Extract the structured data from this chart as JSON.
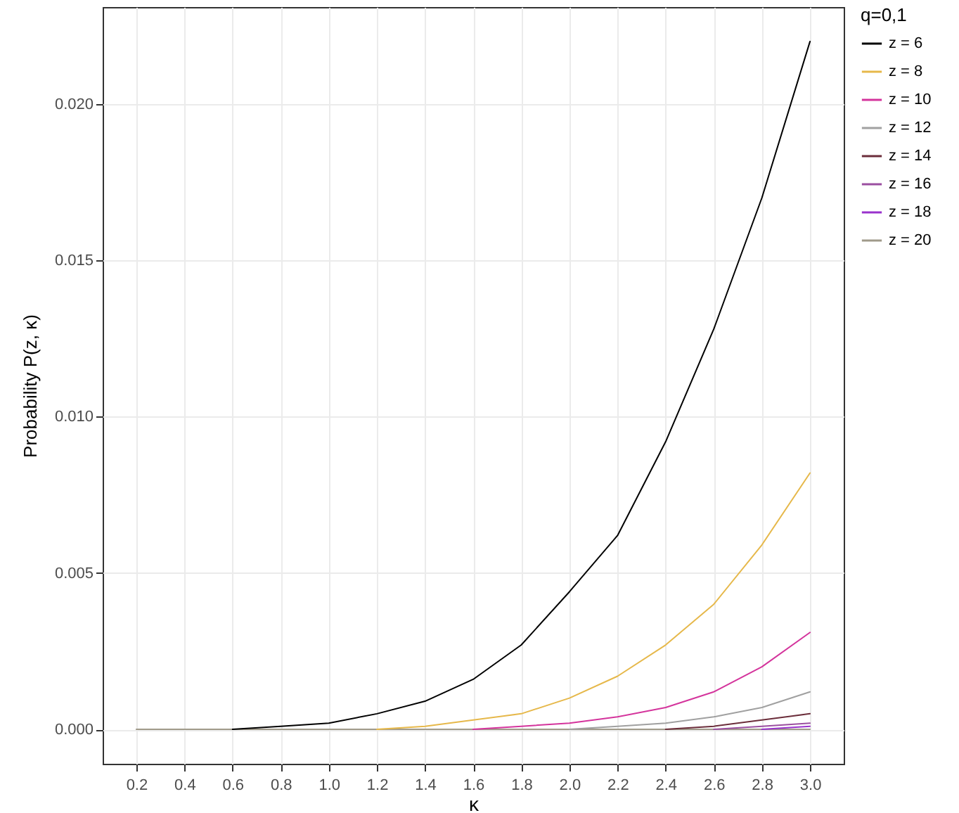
{
  "chart_data": {
    "type": "line",
    "xlabel": "κ",
    "ylabel": "Probability  P(z, κ)",
    "legend_title": "q=0,1",
    "legend": "right",
    "grid": true,
    "xlim": [
      0.06,
      3.14
    ],
    "xticks": [
      {
        "value": 0.2,
        "label": "0.2"
      },
      {
        "value": 0.4,
        "label": "0.4"
      },
      {
        "value": 0.6,
        "label": "0.6"
      },
      {
        "value": 0.8,
        "label": "0.8"
      },
      {
        "value": 1.0,
        "label": "1.0"
      },
      {
        "value": 1.2,
        "label": "1.2"
      },
      {
        "value": 1.4,
        "label": "1.4"
      },
      {
        "value": 1.6,
        "label": "1.6"
      },
      {
        "value": 1.8,
        "label": "1.8"
      },
      {
        "value": 2.0,
        "label": "2.0"
      },
      {
        "value": 2.2,
        "label": "2.2"
      },
      {
        "value": 2.4,
        "label": "2.4"
      },
      {
        "value": 2.6,
        "label": "2.6"
      },
      {
        "value": 2.8,
        "label": "2.8"
      },
      {
        "value": 3.0,
        "label": "3.0"
      }
    ],
    "ylim": [
      -0.0011,
      0.0231
    ],
    "yticks": [
      {
        "value": 0,
        "label": "0.000"
      },
      {
        "value": 0.005,
        "label": "0.005"
      },
      {
        "value": 0.01,
        "label": "0.010"
      },
      {
        "value": 0.015,
        "label": "0.015"
      },
      {
        "value": 0.02,
        "label": "0.020"
      }
    ],
    "series": [
      {
        "name": "z =  6",
        "color": "#000000",
        "x": [
          0.6,
          0.8,
          1.0,
          1.2,
          1.4,
          1.6,
          1.8,
          2.0,
          2.2,
          2.4,
          2.6,
          2.8,
          3.0
        ],
        "values": [
          0,
          0.0001,
          0.0002,
          0.0005,
          0.0009,
          0.0016,
          0.0027,
          0.0044,
          0.0062,
          0.0092,
          0.0128,
          0.017,
          0.022
        ]
      },
      {
        "name": "z =  8",
        "color": "#e6b84a",
        "x": [
          1.2,
          1.4,
          1.6,
          1.8,
          2.0,
          2.2,
          2.4,
          2.6,
          2.8,
          3.0
        ],
        "values": [
          0,
          0.0001,
          0.0003,
          0.0005,
          0.001,
          0.0017,
          0.0027,
          0.004,
          0.0059,
          0.0082
        ]
      },
      {
        "name": "z = 10",
        "color": "#d4349c",
        "x": [
          1.6,
          1.8,
          2.0,
          2.2,
          2.4,
          2.6,
          2.8,
          3.0
        ],
        "values": [
          0,
          0.0001,
          0.0002,
          0.0004,
          0.0007,
          0.0012,
          0.002,
          0.0031
        ]
      },
      {
        "name": "z = 12",
        "color": "#a0a0a0",
        "x": [
          2.0,
          2.2,
          2.4,
          2.6,
          2.8,
          3.0
        ],
        "values": [
          0,
          0.0001,
          0.0002,
          0.0004,
          0.0007,
          0.0012
        ]
      },
      {
        "name": "z = 14",
        "color": "#6b2d3a",
        "x": [
          2.4,
          2.6,
          2.8,
          3.0
        ],
        "values": [
          0,
          0.0001,
          0.0003,
          0.0005
        ]
      },
      {
        "name": "z = 16",
        "color": "#9b4fa0",
        "x": [
          2.6,
          2.8,
          3.0
        ],
        "values": [
          0,
          0.0001,
          0.0002
        ]
      },
      {
        "name": "z = 18",
        "color": "#9932cc",
        "x": [
          2.8,
          3.0
        ],
        "values": [
          0,
          0.0001
        ]
      },
      {
        "name": "z = 20",
        "color": "#a09a8a",
        "x": [
          0.2,
          0.4,
          0.6,
          0.8,
          1.0,
          1.2,
          1.4,
          1.6,
          1.8,
          2.0,
          2.2,
          2.4,
          2.6,
          2.8,
          3.0
        ],
        "values": [
          0,
          0,
          0,
          0,
          0,
          0,
          0,
          0,
          0,
          0,
          0,
          0,
          0,
          0,
          0
        ]
      }
    ]
  }
}
